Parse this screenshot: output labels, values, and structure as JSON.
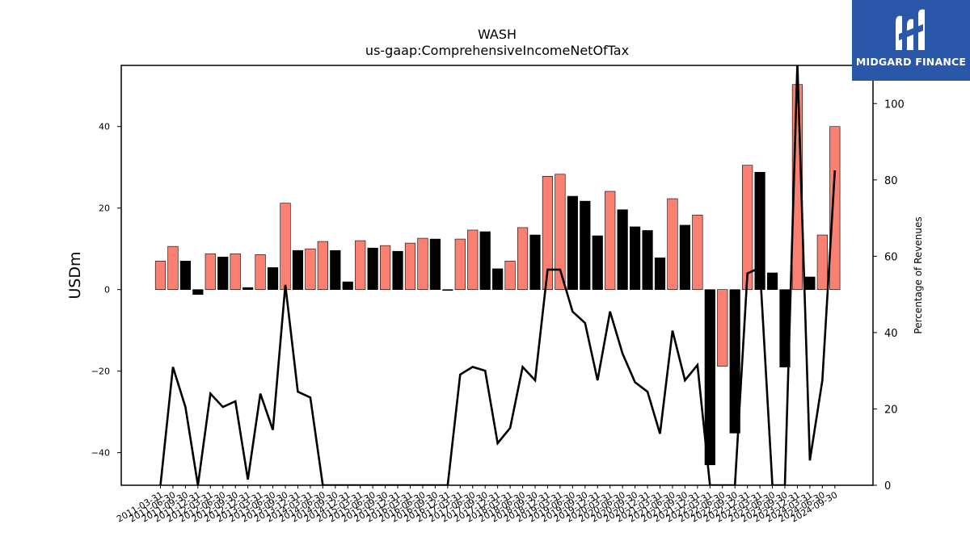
{
  "chart_data": {
    "type": "bar",
    "title": "WASH",
    "subtitle": "us-gaap:ComprehensiveIncomeNetOfTax",
    "ylabel": "USDm",
    "ylabel_right": "Percentage of Revenues",
    "ylim": [
      -48,
      55
    ],
    "ylim_right": [
      0,
      110
    ],
    "yticks": [
      -40,
      -20,
      0,
      20,
      40
    ],
    "yticks_right": [
      0,
      20,
      40,
      60,
      80,
      100
    ],
    "colors": {
      "positive_change": "#fa8072",
      "negative_change": "#000000",
      "line": "#000000"
    },
    "categories": [
      "2011-03-31",
      "2011-06-30",
      "2011-09-30",
      "2011-12-31",
      "2012-03-31",
      "2012-06-30",
      "2012-09-30",
      "2012-12-31",
      "2013-03-31",
      "2013-06-30",
      "2013-09-30",
      "2013-12-31",
      "2014-03-31",
      "2014-06-30",
      "2014-09-30",
      "2014-12-31",
      "2015-03-31",
      "2015-06-30",
      "2015-09-30",
      "2015-12-31",
      "2016-03-31",
      "2016-06-30",
      "2016-09-30",
      "2016-12-31",
      "2017-03-31",
      "2017-06-30",
      "2017-09-30",
      "2017-12-31",
      "2018-03-31",
      "2018-06-30",
      "2018-09-30",
      "2018-12-31",
      "2019-03-31",
      "2019-06-30",
      "2019-09-30",
      "2019-12-31",
      "2020-03-31",
      "2020-06-30",
      "2020-09-30",
      "2020-12-31",
      "2021-03-31",
      "2021-06-30",
      "2021-09-30",
      "2021-12-31",
      "2022-03-31",
      "2022-06-30",
      "2022-09-30",
      "2022-12-31",
      "2023-03-31",
      "2023-06-30",
      "2023-09-30",
      "2023-12-31",
      "2024-03-31",
      "2024-06-30",
      "2024-09-30"
    ],
    "series": [
      {
        "type": "bar",
        "values": [
          7.0,
          10.6,
          7.0,
          -1.2,
          8.8,
          8.0,
          8.8,
          0.5,
          8.6,
          5.4,
          21.2,
          9.6,
          10.0,
          11.8,
          9.6,
          1.9,
          12.0,
          10.2,
          10.8,
          9.4,
          11.4,
          12.6,
          12.4,
          -0.2,
          12.4,
          14.6,
          14.2,
          5.1,
          7.0,
          15.2,
          13.4,
          27.8,
          28.3,
          22.9,
          21.7,
          13.2,
          24.1,
          19.6,
          15.4,
          14.5,
          7.8,
          22.3,
          15.8,
          18.3,
          -43.0,
          -18.8,
          -35.2,
          30.5,
          28.8,
          4.1,
          -19.0,
          50.3,
          3.1,
          13.4,
          40.0
        ]
      },
      {
        "type": "line",
        "axis": "right",
        "values": [
          0,
          31,
          20.5,
          0,
          24,
          20.5,
          22,
          1.5,
          24,
          14.5,
          52.5,
          24.5,
          23,
          0,
          0,
          0,
          0,
          0,
          0,
          0,
          0,
          0,
          0,
          0,
          29,
          31,
          30,
          11,
          15,
          31,
          27.5,
          56.5,
          56.5,
          45.5,
          42.5,
          27.5,
          45.5,
          34.5,
          27,
          24.5,
          13.5,
          40.5,
          27.5,
          31.5,
          0,
          0,
          0,
          55.5,
          57,
          0,
          0,
          110.5,
          6.5,
          27.5,
          82.5
        ]
      }
    ]
  },
  "brand": {
    "name": "MIDGARD FINANCE",
    "color": "#2a57a8"
  }
}
